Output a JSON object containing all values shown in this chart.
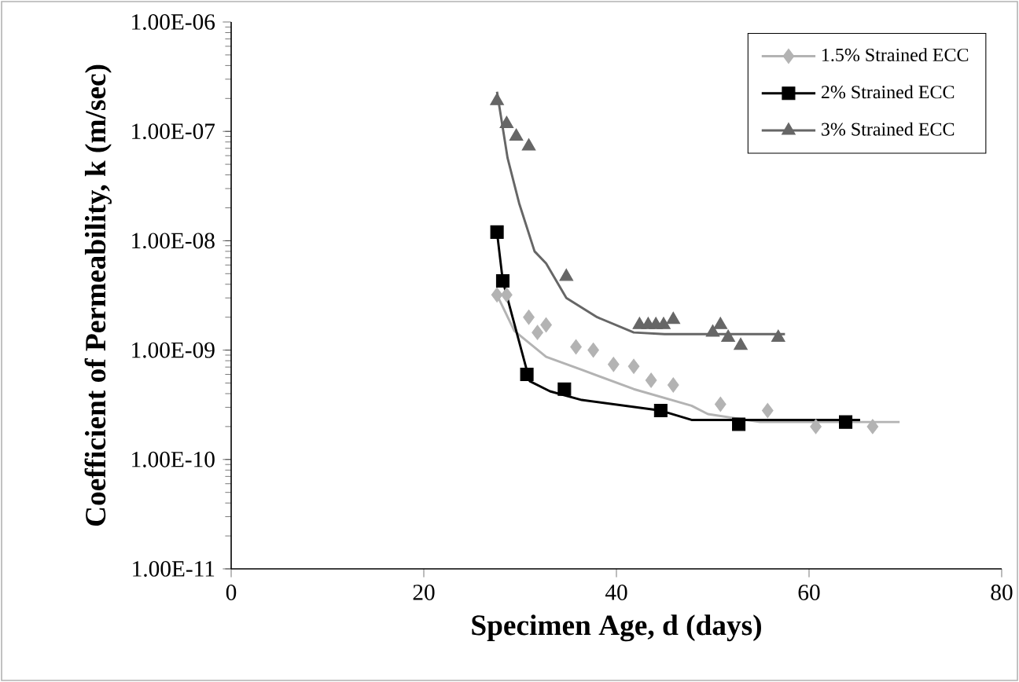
{
  "chart_data": {
    "type": "scatter",
    "xlabel": "Specimen Age, d (days)",
    "ylabel": "Coefficient of Permeability, k (m/sec)",
    "log": "y",
    "legend": "top right",
    "xlim": [
      0,
      80
    ],
    "xticks": [
      0,
      20,
      40,
      60,
      80
    ],
    "ylim": [
      1e-11,
      1e-06
    ],
    "yticks": [
      {
        "value": 1e-11,
        "label": "1.00E-11"
      },
      {
        "value": 1e-10,
        "label": "1.00E-10"
      },
      {
        "value": 1e-09,
        "label": "1.00E-09"
      },
      {
        "value": 1e-08,
        "label": "1.00E-08"
      },
      {
        "value": 1e-07,
        "label": "1.00E-07"
      },
      {
        "value": 1e-06,
        "label": "1.00E-06"
      }
    ],
    "series": [
      {
        "name": "1.5% Strained ECC",
        "marker": "diamond",
        "color": "#b3b3b3",
        "x": [
          27.6,
          28.6,
          30.9,
          32.7,
          31.8,
          35.8,
          37.6,
          39.7,
          41.8,
          43.6,
          45.9,
          50.8,
          55.7,
          60.7,
          66.6
        ],
        "values": [
          3.2e-09,
          3.2e-09,
          2e-09,
          1.7e-09,
          1.45e-09,
          1.07e-09,
          1e-09,
          7.4e-10,
          7.1e-10,
          5.3e-10,
          4.8e-10,
          3.2e-10,
          2.8e-10,
          2e-10,
          2e-10
        ]
      },
      {
        "name": "2% Strained ECC",
        "marker": "square",
        "color": "#000000",
        "x": [
          27.6,
          28.2,
          30.7,
          34.6,
          44.6,
          52.7,
          63.8
        ],
        "values": [
          1.2e-08,
          4.3e-09,
          6e-10,
          4.4e-10,
          2.8e-10,
          2.1e-10,
          2.2e-10
        ]
      },
      {
        "name": "3% Strained ECC",
        "marker": "triangle",
        "color": "#666666",
        "x": [
          27.6,
          28.6,
          29.6,
          30.9,
          34.8,
          42.4,
          43.3,
          44.1,
          44.9,
          45.9,
          50.0,
          50.8,
          51.6,
          52.9,
          56.8
        ],
        "values": [
          1.9e-07,
          1.17e-07,
          9e-08,
          7.3e-08,
          4.7e-09,
          1.7e-09,
          1.7e-09,
          1.7e-09,
          1.7e-09,
          1.9e-09,
          1.45e-09,
          1.7e-09,
          1.3e-09,
          1.1e-09,
          1.3e-09
        ]
      },
      {
        "type": "line",
        "marker": "none",
        "color": "#b3b3b3",
        "x": [
          27.6,
          29.4,
          32.7,
          36.4,
          41.8,
          47.8,
          49.5,
          54.9,
          69.4
        ],
        "values": [
          3.2e-09,
          1.5e-09,
          8.7e-10,
          6.6e-10,
          4.4e-10,
          3.1e-10,
          2.6e-10,
          2.2e-10,
          2.2e-10
        ]
      },
      {
        "type": "line",
        "marker": "none",
        "color": "#000000",
        "x": [
          27.6,
          28.2,
          31.0,
          33.1,
          36.4,
          44.6,
          47.8,
          64.0,
          65.3
        ],
        "values": [
          1.2e-08,
          4.3e-09,
          5.2e-10,
          4.2e-10,
          3.5e-10,
          2.8e-10,
          2.3e-10,
          2.3e-10,
          2.3e-10
        ]
      },
      {
        "type": "line",
        "marker": "none",
        "color": "#666666",
        "x": [
          27.6,
          28.7,
          29.9,
          31.5,
          32.7,
          34.8,
          38.0,
          41.8,
          45.0,
          57.5
        ],
        "values": [
          2.3e-07,
          5.7e-08,
          2.2e-08,
          8e-09,
          6.2e-09,
          3e-09,
          2e-09,
          1.45e-09,
          1.4e-09,
          1.4e-09
        ]
      }
    ]
  }
}
